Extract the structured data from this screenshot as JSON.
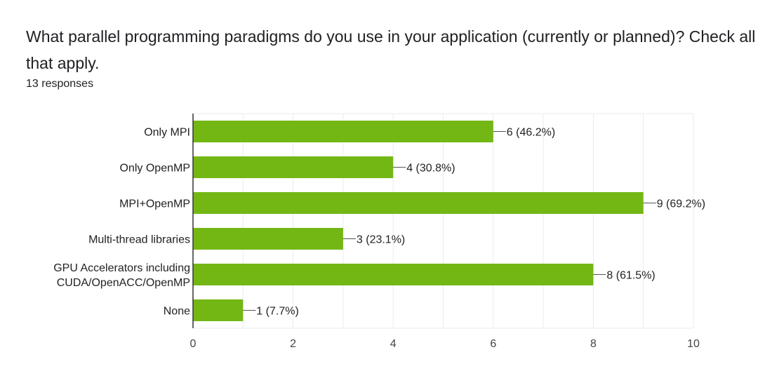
{
  "question": {
    "title": "What parallel programming paradigms do you use in your application (currently or planned)? Check all that apply.",
    "responses": "13 responses"
  },
  "colors": {
    "bar": "#73b715",
    "axis": "#333333",
    "grid": "#ebebeb",
    "leader": "#555555"
  },
  "chart_data": {
    "type": "bar",
    "orientation": "horizontal",
    "title": "What parallel programming paradigms do you use in your application (currently or planned)? Check all that apply.",
    "subtitle": "13 responses",
    "categories": [
      [
        "Only MPI"
      ],
      [
        "Only OpenMP"
      ],
      [
        "MPI+OpenMP"
      ],
      [
        "Multi-thread libraries"
      ],
      [
        "GPU Accelerators including",
        "CUDA/OpenACC/OpenMP"
      ],
      [
        "None"
      ]
    ],
    "values": [
      6,
      4,
      9,
      3,
      8,
      1
    ],
    "data_labels": [
      "6 (46.2%)",
      "4 (30.8%)",
      "9 (69.2%)",
      "3 (23.1%)",
      "8 (61.5%)",
      "1 (7.7%)"
    ],
    "xlim": [
      0,
      10
    ],
    "x_ticks": [
      0,
      2,
      4,
      6,
      8,
      10
    ],
    "x_tick_labels": [
      "0",
      "2",
      "4",
      "6",
      "8",
      "10"
    ],
    "grid": true,
    "legend": "none"
  }
}
